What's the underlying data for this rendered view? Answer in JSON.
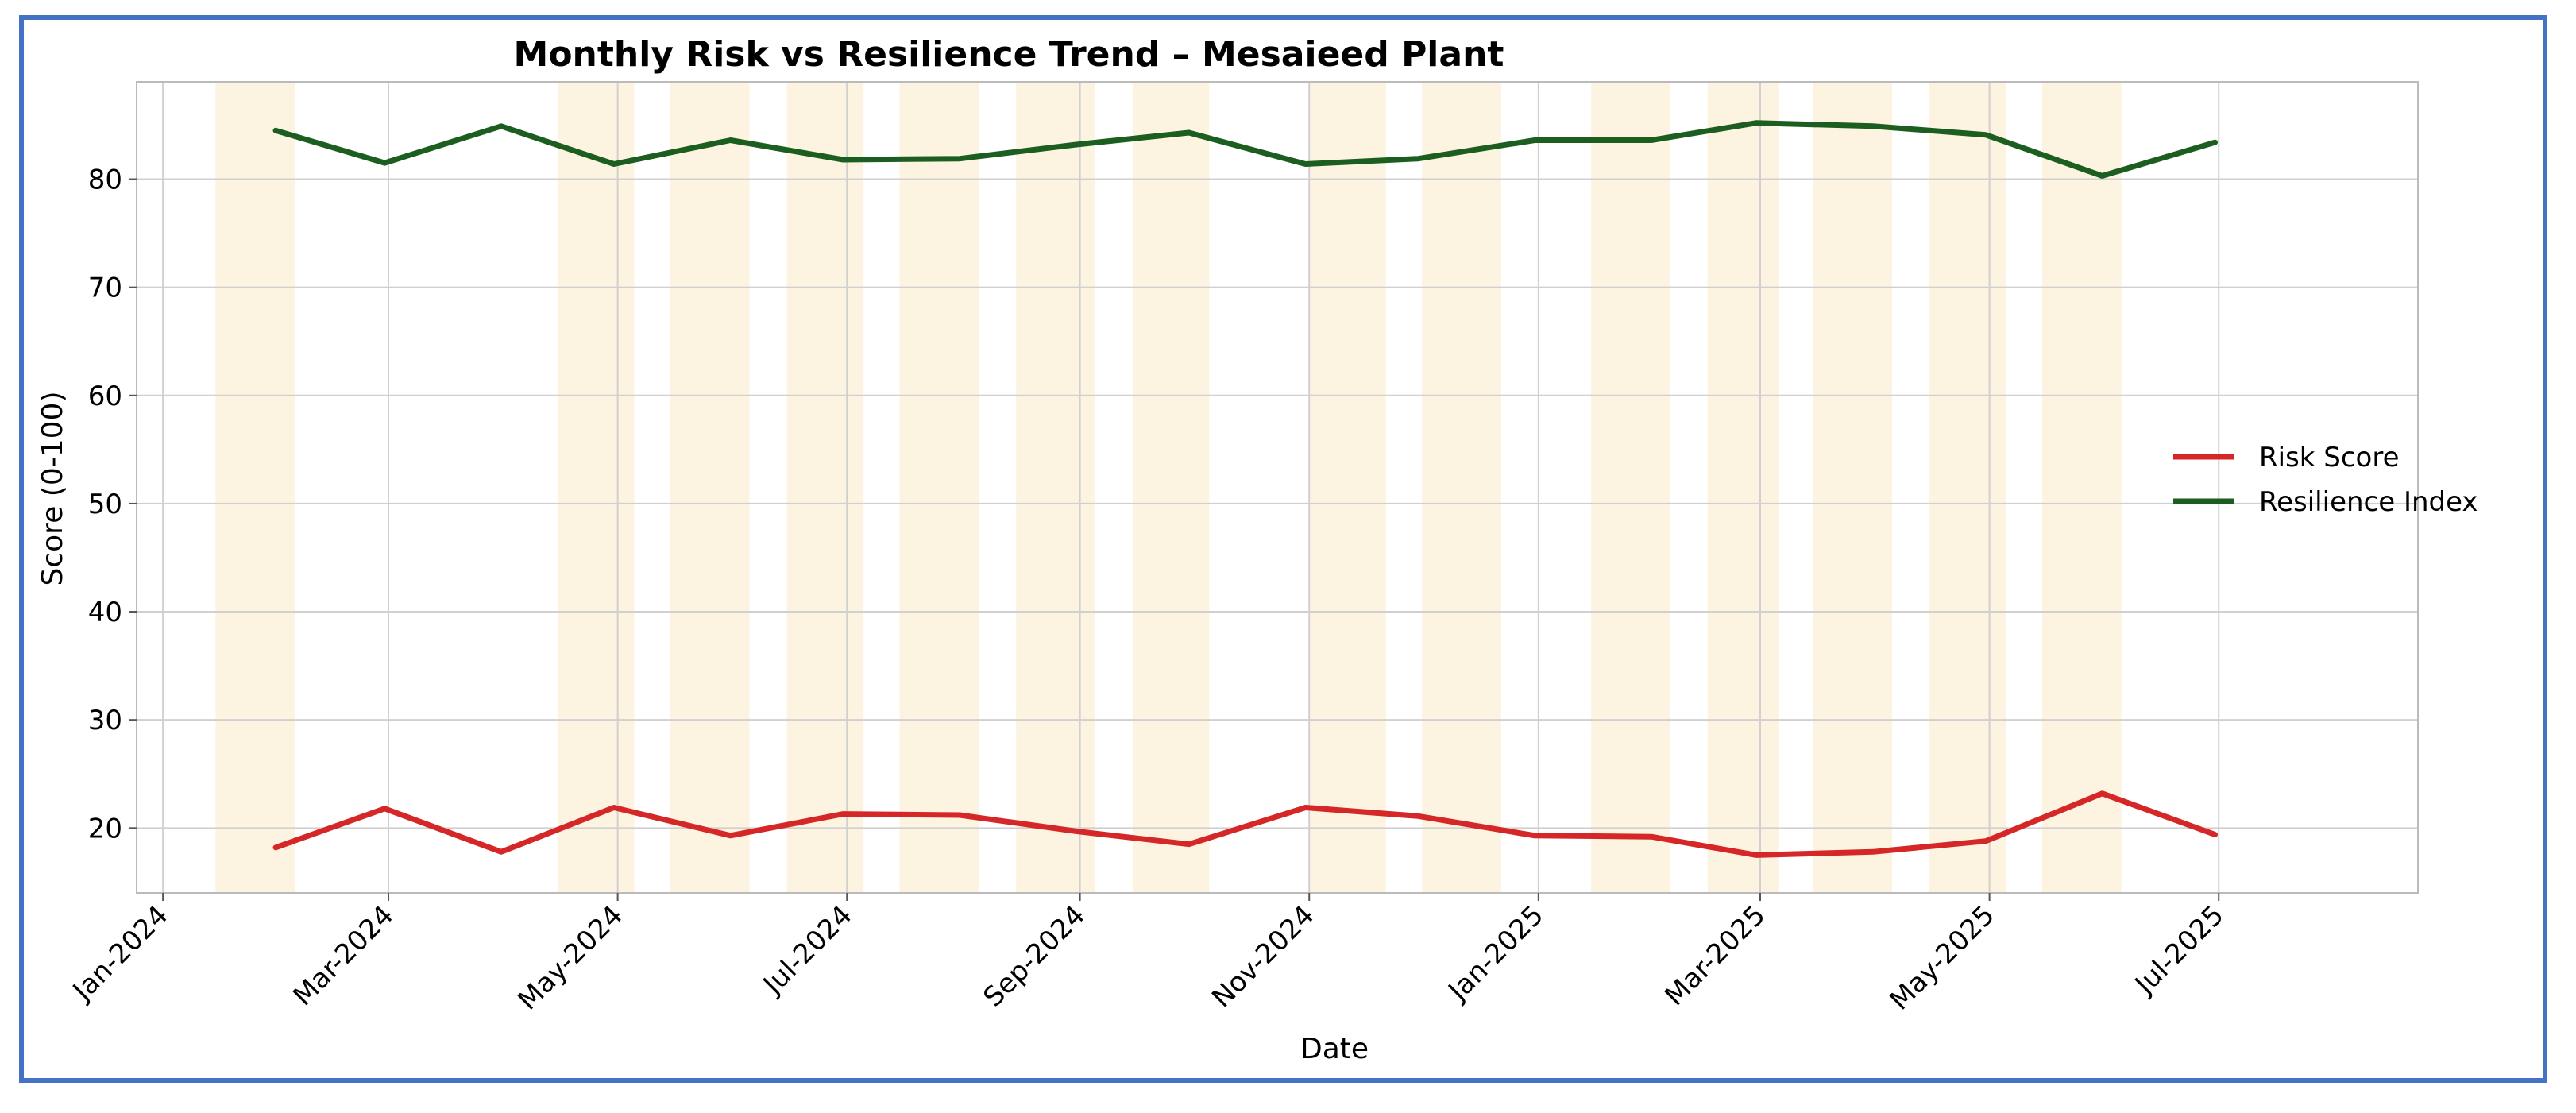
{
  "chart_data": {
    "type": "line",
    "title": "Monthly Risk vs Resilience Trend – Mesaieed Plant",
    "xlabel": "Date",
    "ylabel": "Score (0-100)",
    "x_ticks": [
      "Jan-2024",
      "Mar-2024",
      "May-2024",
      "Jul-2024",
      "Sep-2024",
      "Nov-2024",
      "Jan-2025",
      "Mar-2025",
      "May-2025",
      "Jul-2025"
    ],
    "y_ticks": [
      20,
      30,
      40,
      50,
      60,
      70,
      80
    ],
    "ylim": [
      14,
      89
    ],
    "xlim": [
      "2023-12-25",
      "2025-08-23"
    ],
    "grid": true,
    "legend_position": "right",
    "dates": [
      "2024-01-31",
      "2024-02-29",
      "2024-03-31",
      "2024-04-30",
      "2024-05-31",
      "2024-06-30",
      "2024-07-31",
      "2024-08-31",
      "2024-09-30",
      "2024-10-31",
      "2024-11-30",
      "2024-12-31",
      "2025-01-31",
      "2025-02-28",
      "2025-03-31",
      "2025-04-30",
      "2025-05-31",
      "2025-06-30"
    ],
    "series": [
      {
        "name": "Risk Score",
        "color": "#d62728",
        "values": [
          18.2,
          21.8,
          17.8,
          21.9,
          19.3,
          21.3,
          21.2,
          19.7,
          18.5,
          21.9,
          21.1,
          19.3,
          19.2,
          17.5,
          17.8,
          18.8,
          23.2,
          19.4
        ]
      },
      {
        "name": "Resilience Index",
        "color": "#1b5e20",
        "values": [
          84.5,
          81.5,
          84.9,
          81.4,
          83.6,
          81.8,
          81.9,
          83.2,
          84.3,
          81.4,
          81.9,
          83.6,
          83.6,
          85.2,
          84.9,
          84.1,
          80.3,
          83.4
        ]
      }
    ],
    "shaded_bands": [
      [
        "2024-01-15",
        "2024-02-15"
      ],
      [
        "2024-04-15",
        "2024-05-15"
      ],
      [
        "2024-05-15",
        "2024-06-15"
      ],
      [
        "2024-06-15",
        "2024-07-15"
      ],
      [
        "2024-07-15",
        "2024-08-15"
      ],
      [
        "2024-08-15",
        "2024-09-15"
      ],
      [
        "2024-09-15",
        "2024-10-15"
      ],
      [
        "2024-11-01",
        "2024-12-01"
      ],
      [
        "2024-12-01",
        "2025-01-01"
      ],
      [
        "2025-01-15",
        "2025-02-15"
      ],
      [
        "2025-02-15",
        "2025-03-15"
      ],
      [
        "2025-03-15",
        "2025-04-15"
      ],
      [
        "2025-04-15",
        "2025-05-15"
      ],
      [
        "2025-05-15",
        "2025-06-15"
      ]
    ],
    "shade_color": "#fdf3e1",
    "grid_color": "#d0d0d0"
  }
}
